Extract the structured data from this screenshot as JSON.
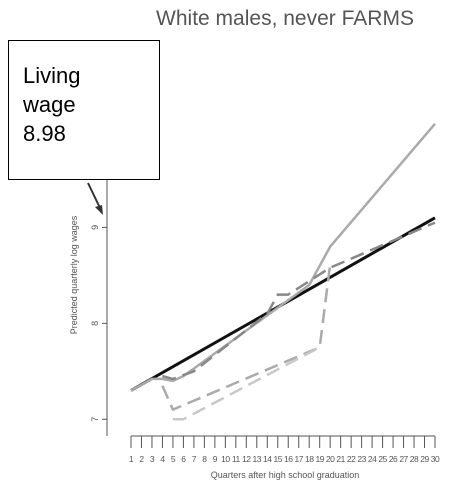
{
  "chart_data": {
    "type": "line",
    "title": "White males, never FARMS",
    "xlabel": "Quarters after high school graduation",
    "ylabel": "Predicted quarterly log wages",
    "xlim": [
      1,
      30
    ],
    "ylim": [
      6.7,
      10.85
    ],
    "y_ticks": [
      7,
      8,
      9
    ],
    "x_ticks": [
      1,
      2,
      3,
      4,
      5,
      6,
      7,
      8,
      9,
      10,
      11,
      12,
      13,
      14,
      15,
      16,
      17,
      18,
      19,
      20,
      21,
      22,
      23,
      24,
      25,
      26,
      27,
      28,
      29,
      30
    ],
    "grid": false,
    "legend": "none",
    "series": [
      {
        "color": "#111111",
        "style": "solid",
        "x": [
          1,
          30
        ],
        "y": [
          7.3,
          9.1
        ]
      },
      {
        "color": "#aaaaaa",
        "style": "solid",
        "x": [
          1,
          3,
          4,
          5,
          6,
          18,
          19,
          20,
          30
        ],
        "y": [
          7.3,
          7.42,
          7.42,
          7.4,
          7.45,
          8.4,
          8.6,
          8.8,
          10.08
        ]
      },
      {
        "color": "#888888",
        "style": "dashed",
        "x": [
          4,
          5,
          7,
          14,
          15,
          16,
          20,
          30
        ],
        "y": [
          7.45,
          7.42,
          7.5,
          8.1,
          8.3,
          8.3,
          8.58,
          9.05
        ]
      },
      {
        "color": "#aaaaaa",
        "style": "dashed",
        "x": [
          4,
          5,
          19,
          20
        ],
        "y": [
          7.35,
          7.1,
          7.75,
          8.62
        ]
      },
      {
        "color": "#c8c8c8",
        "style": "dashed",
        "x": [
          5,
          6,
          19
        ],
        "y": [
          7.0,
          7.0,
          7.75
        ]
      }
    ],
    "annotations": [
      {
        "lines": [
          "Living",
          "wage",
          "8.98"
        ],
        "arrow_to": {
          "x": 0.5,
          "y": 9.18
        }
      }
    ]
  },
  "colors": {
    "axis": "#555555",
    "title": "#555555",
    "callout_border": "#000000"
  }
}
